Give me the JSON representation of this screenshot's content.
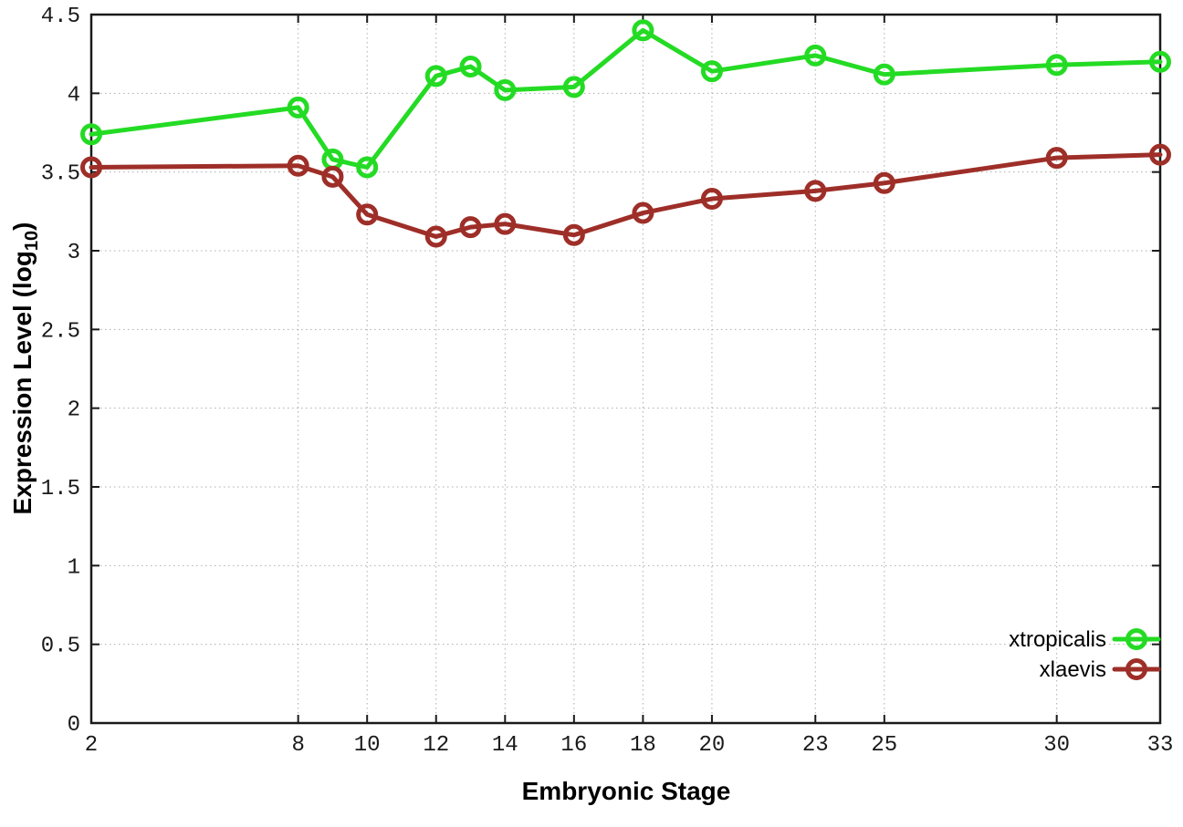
{
  "chart_data": {
    "type": "line",
    "title": "",
    "xlabel": "Embryonic Stage",
    "ylabel": "Expression Level (log10)",
    "ylabel_parts": {
      "main": "Expression Level (log",
      "sub": "10",
      "end": ")"
    },
    "xlim": [
      2,
      33
    ],
    "ylim": [
      0,
      4.5
    ],
    "x_ticks": [
      2,
      8,
      10,
      12,
      14,
      16,
      18,
      20,
      23,
      25,
      30,
      33
    ],
    "y_ticks": [
      0,
      0.5,
      1,
      1.5,
      2,
      2.5,
      3,
      3.5,
      4,
      4.5
    ],
    "grid": true,
    "legend_position": "bottom-right-inside",
    "x": [
      2,
      8,
      9,
      10,
      12,
      13,
      14,
      16,
      18,
      20,
      23,
      25,
      30,
      33
    ],
    "series": [
      {
        "name": "xtropicalis",
        "color": "#24DB24",
        "values": [
          3.74,
          3.91,
          3.58,
          3.53,
          4.11,
          4.17,
          4.02,
          4.04,
          4.4,
          4.14,
          4.24,
          4.12,
          4.18,
          4.2
        ]
      },
      {
        "name": "xlaevis",
        "color": "#9E2E28",
        "values": [
          3.53,
          3.54,
          3.47,
          3.23,
          3.09,
          3.15,
          3.17,
          3.1,
          3.24,
          3.33,
          3.38,
          3.43,
          3.59,
          3.61
        ]
      }
    ],
    "marker": "open-circle",
    "style": {
      "axis_color": "#1A1A1A",
      "grid_color": "#ADADAD",
      "background": "#FFFFFF",
      "line_width": 5,
      "marker_radius": 9.5,
      "marker_stroke": 5
    }
  }
}
